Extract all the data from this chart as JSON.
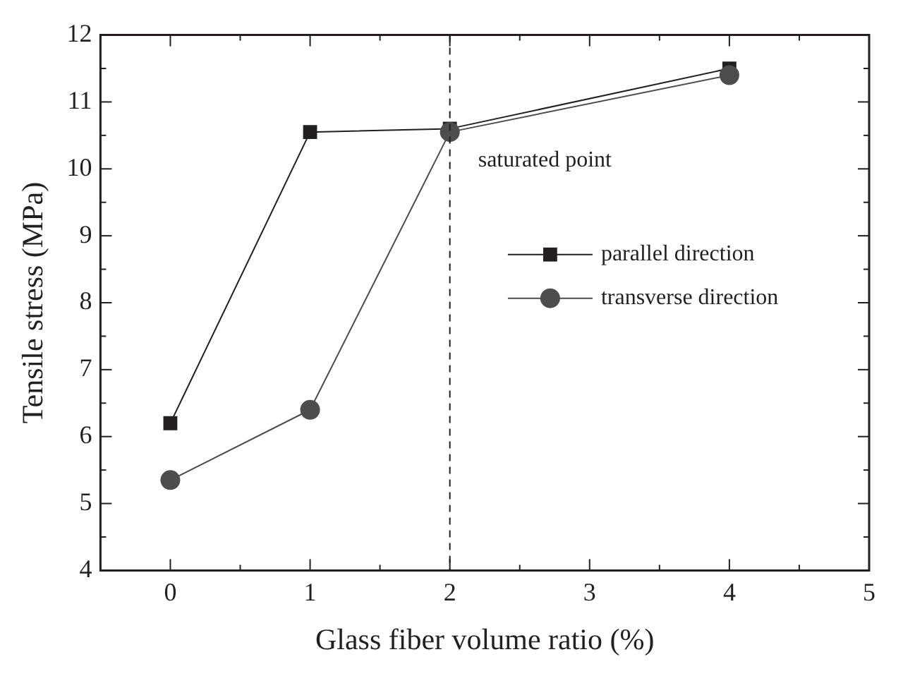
{
  "chart_data": {
    "type": "line",
    "xlabel": "Glass fiber volume ratio (%)",
    "ylabel": "Tensile stress (MPa)",
    "x": [
      0,
      1,
      2,
      4
    ],
    "series": [
      {
        "name": "parallel direction",
        "color": "#231f20",
        "values": [
          6.2,
          10.55,
          10.6,
          11.5
        ],
        "marker": "square"
      },
      {
        "name": "transverse direction",
        "color": "#4d4d4f",
        "values": [
          5.35,
          6.4,
          10.55,
          11.4
        ],
        "marker": "circle"
      }
    ],
    "xlim": [
      -0.5,
      5
    ],
    "xticks": [
      0,
      1,
      2,
      3,
      4,
      5
    ],
    "ylim": [
      4,
      12
    ],
    "yticks": [
      4,
      5,
      6,
      7,
      8,
      9,
      10,
      11,
      12
    ],
    "ref_lines": [
      {
        "axis": "x",
        "value": 2,
        "line_style": "dashed",
        "color": "#231f20"
      }
    ],
    "annotations": [
      {
        "text": "saturated point",
        "x": 2,
        "y": 10.55
      }
    ],
    "legend": "right",
    "grid": false,
    "line_style": "solid"
  }
}
